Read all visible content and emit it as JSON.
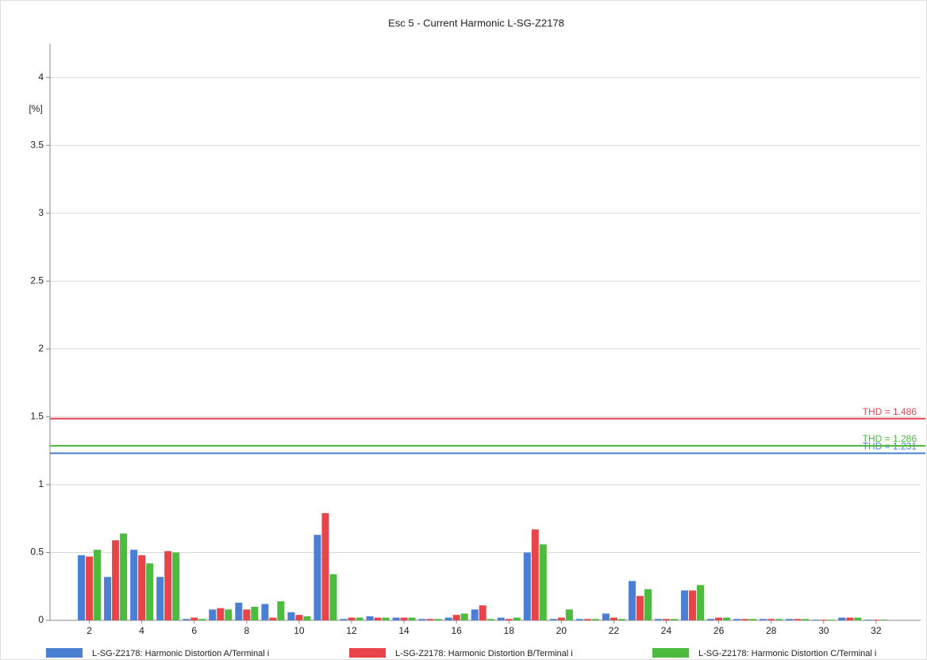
{
  "chart_data": {
    "type": "bar",
    "title": "Esc 5 - Current Harmonic L-SG-Z2178",
    "y_label": "[%]",
    "x": [
      2,
      3,
      4,
      5,
      6,
      7,
      8,
      9,
      10,
      11,
      12,
      13,
      14,
      15,
      16,
      17,
      18,
      19,
      20,
      21,
      22,
      23,
      24,
      25,
      26,
      27,
      28,
      29,
      30,
      31,
      32
    ],
    "xlim": [
      0.5,
      33.7
    ],
    "xticks": [
      2,
      4,
      6,
      8,
      10,
      12,
      14,
      16,
      18,
      20,
      22,
      24,
      26,
      28,
      30,
      32
    ],
    "ylim": [
      0,
      4.25
    ],
    "yticks": [
      0,
      0.5,
      1,
      1.5,
      2,
      2.5,
      3,
      3.5,
      4
    ],
    "grid": true,
    "legend": "bottom",
    "series": [
      {
        "name": "L-SG-Z2178: Harmonic Distortion A/Terminal i",
        "color": "#4a7fd4",
        "values": [
          0.48,
          0.32,
          0.52,
          0.32,
          0.01,
          0.08,
          0.13,
          0.12,
          0.06,
          0.63,
          0.01,
          0.03,
          0.02,
          0.01,
          0.02,
          0.08,
          0.02,
          0.5,
          0.01,
          0.01,
          0.05,
          0.29,
          0.01,
          0.22,
          0.01,
          0.01,
          0.01,
          0.01,
          0.005,
          0.02,
          0.005
        ]
      },
      {
        "name": "L-SG-Z2178: Harmonic Distortion B/Terminal i",
        "color": "#e8454a",
        "values": [
          0.47,
          0.59,
          0.48,
          0.51,
          0.02,
          0.09,
          0.08,
          0.02,
          0.04,
          0.79,
          0.02,
          0.02,
          0.02,
          0.01,
          0.04,
          0.11,
          0.01,
          0.67,
          0.02,
          0.01,
          0.02,
          0.18,
          0.01,
          0.22,
          0.02,
          0.01,
          0.01,
          0.01,
          0.005,
          0.02,
          0.005
        ]
      },
      {
        "name": "L-SG-Z2178: Harmonic Distortion C/Terminal i",
        "color": "#4cbb3e",
        "values": [
          0.52,
          0.64,
          0.42,
          0.5,
          0.01,
          0.08,
          0.1,
          0.14,
          0.03,
          0.34,
          0.02,
          0.02,
          0.02,
          0.01,
          0.05,
          0.01,
          0.02,
          0.56,
          0.08,
          0.01,
          0.01,
          0.23,
          0.01,
          0.26,
          0.02,
          0.01,
          0.01,
          0.01,
          0.005,
          0.02,
          0.005
        ]
      }
    ],
    "thd_lines": [
      {
        "label": "THD = 1.231",
        "value": 1.231,
        "color": "#4a7fd4"
      },
      {
        "label": "THD = 1.486",
        "value": 1.486,
        "color": "#e8454a"
      },
      {
        "label": "THD = 1.286",
        "value": 1.286,
        "color": "#4cbb3e"
      }
    ]
  }
}
